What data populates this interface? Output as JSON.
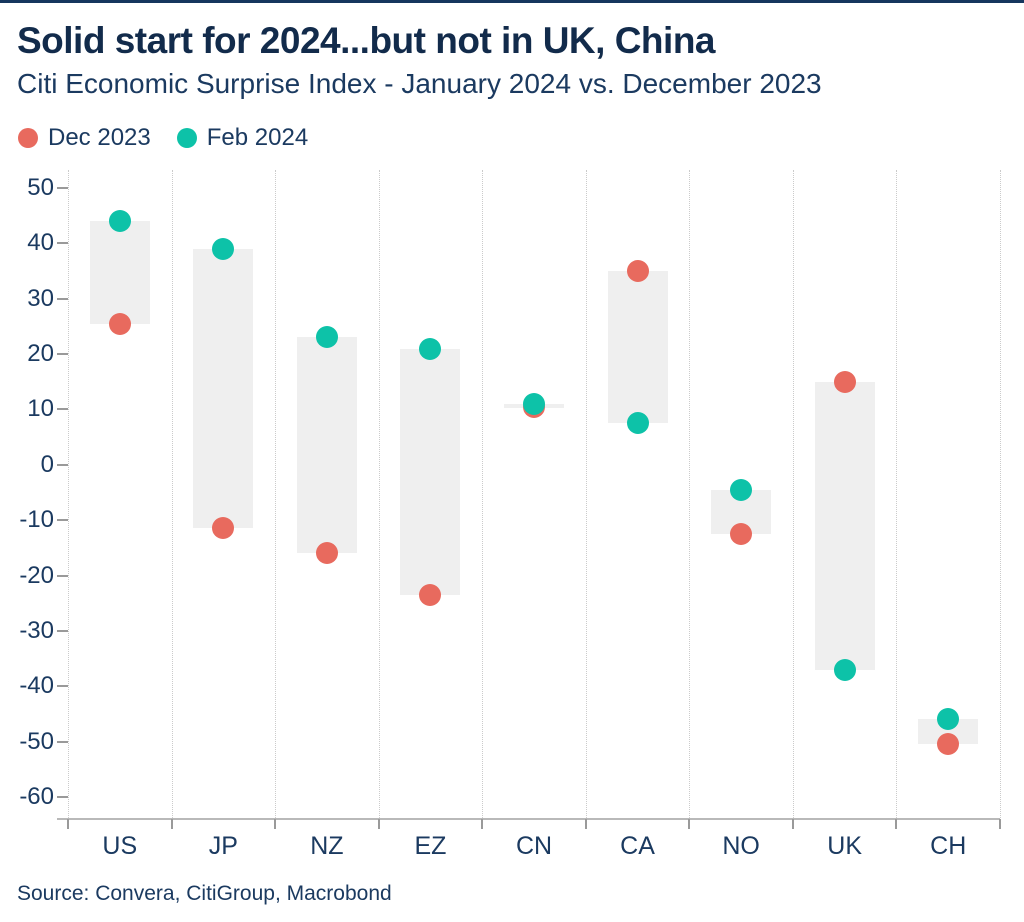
{
  "page": {
    "title": "Solid start for 2024...but not in UK, China",
    "subtitle": "Citi Economic Surprise Index - January 2024 vs. December 2023",
    "source": "Source: Convera, CitiGroup, Macrobond"
  },
  "legend": [
    {
      "label": "Dec 2023",
      "color": "#e86a5e"
    },
    {
      "label": "Feb 2024",
      "color": "#0dc2a8"
    }
  ],
  "colors": {
    "title_text": "#122b4b",
    "body_text": "#1b3a60",
    "top_rule": "#16365e",
    "dec_dot": "#e86a5e",
    "feb_dot": "#0dc2a8",
    "range_bar": "#efefef",
    "separator": "#cbcbcb",
    "axis_line": "#b9b9b9",
    "tick": "#9a9a9a"
  },
  "chart_data": {
    "type": "dumbbell-range",
    "title": "Solid start for 2024...but not in UK, China",
    "subtitle": "Citi Economic Surprise Index - January 2024 vs. December 2023",
    "categories": [
      "US",
      "JP",
      "NZ",
      "EZ",
      "CN",
      "CA",
      "NO",
      "UK",
      "CH"
    ],
    "series": [
      {
        "name": "Dec 2023",
        "color": "#e86a5e",
        "values": [
          25.5,
          -11.5,
          -16,
          -23.5,
          10.5,
          35,
          -12.5,
          15,
          -50.5
        ]
      },
      {
        "name": "Feb 2024",
        "color": "#0dc2a8",
        "values": [
          44,
          39,
          23,
          21,
          11,
          7.5,
          -4.5,
          -37,
          -46
        ]
      }
    ],
    "ylim": [
      -60,
      50
    ],
    "yticks": [
      50,
      40,
      30,
      20,
      10,
      0,
      -10,
      -20,
      -30,
      -40,
      -50,
      -60
    ],
    "grid": "vertical-dotted-column-separators",
    "legend_position": "top-left",
    "source": "Source: Convera, CitiGroup, Macrobond"
  }
}
